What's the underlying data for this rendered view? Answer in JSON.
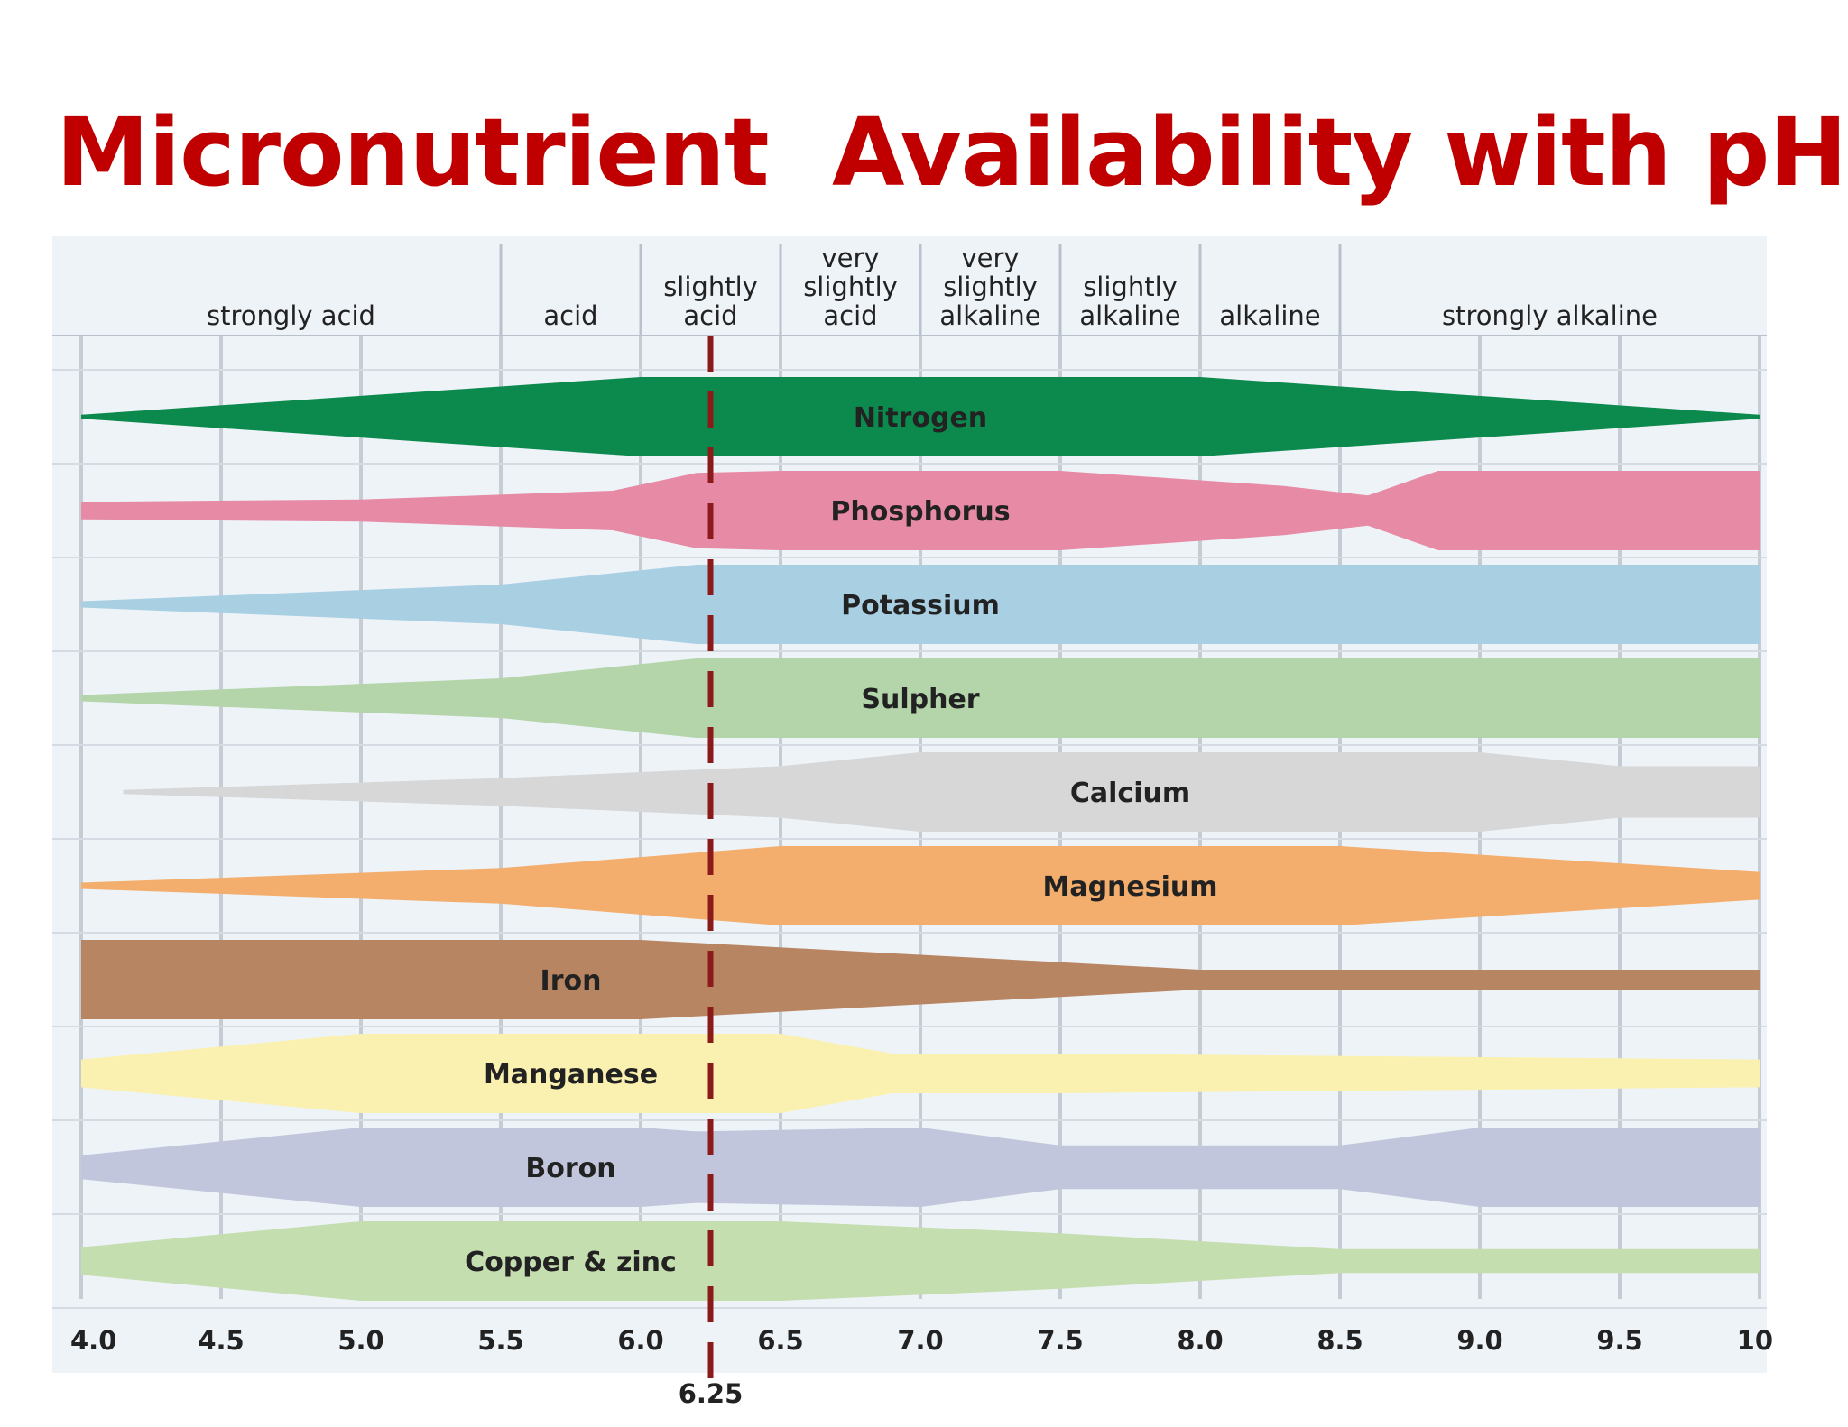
{
  "title": "Micronutrient  Availability with pH",
  "chart_data": {
    "type": "area",
    "title": "Micronutrient  Availability with pH",
    "xlabel": "",
    "ylabel": "",
    "x_ticks": [
      "4.0",
      "4.5",
      "5.0",
      "5.5",
      "6.0",
      "6.5",
      "7.0",
      "7.5",
      "8.0",
      "8.5",
      "9.0",
      "9.5",
      "10"
    ],
    "xlim": [
      4.0,
      10.0
    ],
    "grid": true,
    "reaction_zones": [
      {
        "lines": [
          "strongly acid"
        ],
        "from": 4.0,
        "to": 5.5
      },
      {
        "lines": [
          "acid"
        ],
        "from": 5.5,
        "to": 6.0
      },
      {
        "lines": [
          "slightly",
          "acid"
        ],
        "from": 6.0,
        "to": 6.5
      },
      {
        "lines": [
          "very",
          "slightly",
          "acid"
        ],
        "from": 6.5,
        "to": 7.0
      },
      {
        "lines": [
          "very",
          "slightly",
          "alkaline"
        ],
        "from": 7.0,
        "to": 7.5
      },
      {
        "lines": [
          "slightly",
          "alkaline"
        ],
        "from": 7.5,
        "to": 8.0
      },
      {
        "lines": [
          "alkaline"
        ],
        "from": 8.0,
        "to": 8.5
      },
      {
        "lines": [
          "strongly alkaline"
        ],
        "from": 8.5,
        "to": 10.0
      }
    ],
    "marker": {
      "value": 6.25,
      "label": "6.25",
      "color": "#8b1a1a"
    },
    "series": [
      {
        "name": "Nitrogen",
        "color": "#0c8a4e",
        "label_x": 7.0,
        "x": [
          4.0,
          6.0,
          8.0,
          10.0
        ],
        "width": [
          0.05,
          1.0,
          1.0,
          0.05
        ]
      },
      {
        "name": "Phosphorus",
        "color": "#e68aa5",
        "label_x": 7.0,
        "x": [
          4.0,
          5.0,
          5.9,
          6.2,
          6.5,
          7.5,
          8.3,
          8.6,
          8.85,
          9.9,
          10.0
        ],
        "width": [
          0.22,
          0.28,
          0.5,
          0.95,
          1.0,
          1.0,
          0.62,
          0.38,
          1.0,
          1.0,
          1.0
        ]
      },
      {
        "name": "Potassium",
        "color": "#a9cfe3",
        "label_x": 7.0,
        "x": [
          4.0,
          5.5,
          6.2,
          10.0
        ],
        "width": [
          0.08,
          0.5,
          1.0,
          1.0
        ]
      },
      {
        "name": "Sulpher",
        "color": "#b4d4aa",
        "label_x": 7.0,
        "x": [
          4.0,
          5.5,
          6.2,
          10.0
        ],
        "width": [
          0.08,
          0.5,
          1.0,
          1.0
        ]
      },
      {
        "name": "Calcium",
        "color": "#d7d7d7",
        "label_x": 7.75,
        "x": [
          4.15,
          5.5,
          6.5,
          7.0,
          9.0,
          9.5,
          10.0
        ],
        "width": [
          0.05,
          0.35,
          0.65,
          1.0,
          1.0,
          0.65,
          0.65
        ]
      },
      {
        "name": "Magnesium",
        "color": "#f3ae6e",
        "label_x": 7.75,
        "x": [
          4.0,
          5.5,
          6.5,
          8.5,
          10.0
        ],
        "width": [
          0.08,
          0.45,
          1.0,
          1.0,
          0.35
        ]
      },
      {
        "name": "Iron",
        "color": "#b88562",
        "label_x": 5.75,
        "x": [
          4.0,
          6.0,
          8.0,
          10.0
        ],
        "width": [
          1.0,
          1.0,
          0.25,
          0.25
        ]
      },
      {
        "name": "Manganese",
        "color": "#faf1b0",
        "label_x": 5.75,
        "x": [
          4.0,
          5.0,
          6.5,
          6.9,
          7.5,
          10.0
        ],
        "width": [
          0.35,
          1.0,
          1.0,
          0.5,
          0.5,
          0.35
        ]
      },
      {
        "name": "Boron",
        "color": "#c1c6dc",
        "label_x": 5.75,
        "x": [
          4.0,
          5.0,
          6.0,
          6.2,
          7.0,
          7.5,
          8.5,
          9.0,
          10.0
        ],
        "width": [
          0.3,
          1.0,
          1.0,
          0.9,
          1.0,
          0.55,
          0.55,
          1.0,
          1.0
        ]
      },
      {
        "name": "Copper & zinc",
        "color": "#c5deb0",
        "label_x": 5.75,
        "x": [
          4.0,
          5.0,
          6.5,
          7.5,
          8.5,
          10.0
        ],
        "width": [
          0.35,
          1.0,
          1.0,
          0.7,
          0.3,
          0.3
        ]
      }
    ]
  }
}
